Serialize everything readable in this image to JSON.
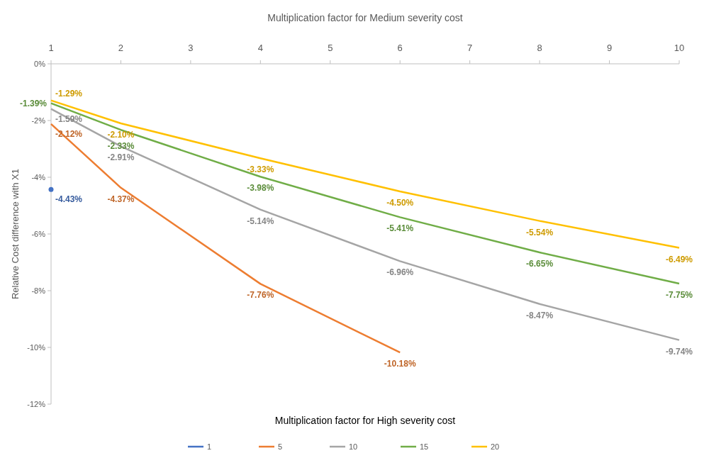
{
  "chart_data": {
    "type": "line",
    "xlabel": "Multiplication factor for High severity cost",
    "x2label": "Multiplication factor for Medium severity cost",
    "ylabel": "Relative Cost difference with X1",
    "xlim": [
      1,
      10
    ],
    "xticks": [
      1,
      2,
      3,
      4,
      5,
      6,
      7,
      8,
      9,
      10
    ],
    "ylim": [
      -12,
      0
    ],
    "yticks": [
      {
        "value": 0,
        "label": "0%"
      },
      {
        "value": -2,
        "label": "-2%"
      },
      {
        "value": -4,
        "label": "-4%"
      },
      {
        "value": -6,
        "label": "-6%"
      },
      {
        "value": -8,
        "label": "-8%"
      },
      {
        "value": -10,
        "label": "-10%"
      },
      {
        "value": -12,
        "label": "-12%"
      }
    ],
    "grid": false,
    "legend": "bottom",
    "marker": "none",
    "line_style": "solid",
    "series": [
      {
        "name": "1",
        "color": "#4472c4",
        "marker": "circle",
        "x": [
          1
        ],
        "values": [
          -4.43
        ],
        "value_labels": [
          "-4.43%"
        ]
      },
      {
        "name": "5",
        "color": "#ed7d31",
        "x": [
          1,
          2,
          4,
          6
        ],
        "values": [
          -2.12,
          -4.37,
          -7.76,
          -10.18
        ],
        "value_labels": [
          "-2.12%",
          "-4.37%",
          "-7.76%",
          "-10.18%"
        ]
      },
      {
        "name": "10",
        "color": "#a5a5a5",
        "x": [
          1,
          2,
          4,
          6,
          8,
          10
        ],
        "values": [
          -1.59,
          -2.91,
          -5.14,
          -6.96,
          -8.47,
          -9.74
        ],
        "value_labels": [
          "-1.59%",
          "-2.91%",
          "-5.14%",
          "-6.96%",
          "-8.47%",
          "-9.74%"
        ]
      },
      {
        "name": "15",
        "color": "#70ad47",
        "x": [
          1,
          2,
          4,
          6,
          8,
          10
        ],
        "values": [
          -1.39,
          -2.33,
          -3.98,
          -5.41,
          -6.65,
          -7.75
        ],
        "value_labels": [
          "-1.39%",
          "-2.33%",
          "-3.98%",
          "-5.41%",
          "-6.65%",
          "-7.75%"
        ]
      },
      {
        "name": "20",
        "color": "#ffc000",
        "x": [
          1,
          2,
          4,
          6,
          8,
          10
        ],
        "values": [
          -1.29,
          -2.1,
          -3.33,
          -4.5,
          -5.54,
          -6.49
        ],
        "value_labels": [
          "-1.29%",
          "-2.10%",
          "-3.33%",
          "-4.50%",
          "-5.54%",
          "-6.49%"
        ]
      }
    ]
  }
}
